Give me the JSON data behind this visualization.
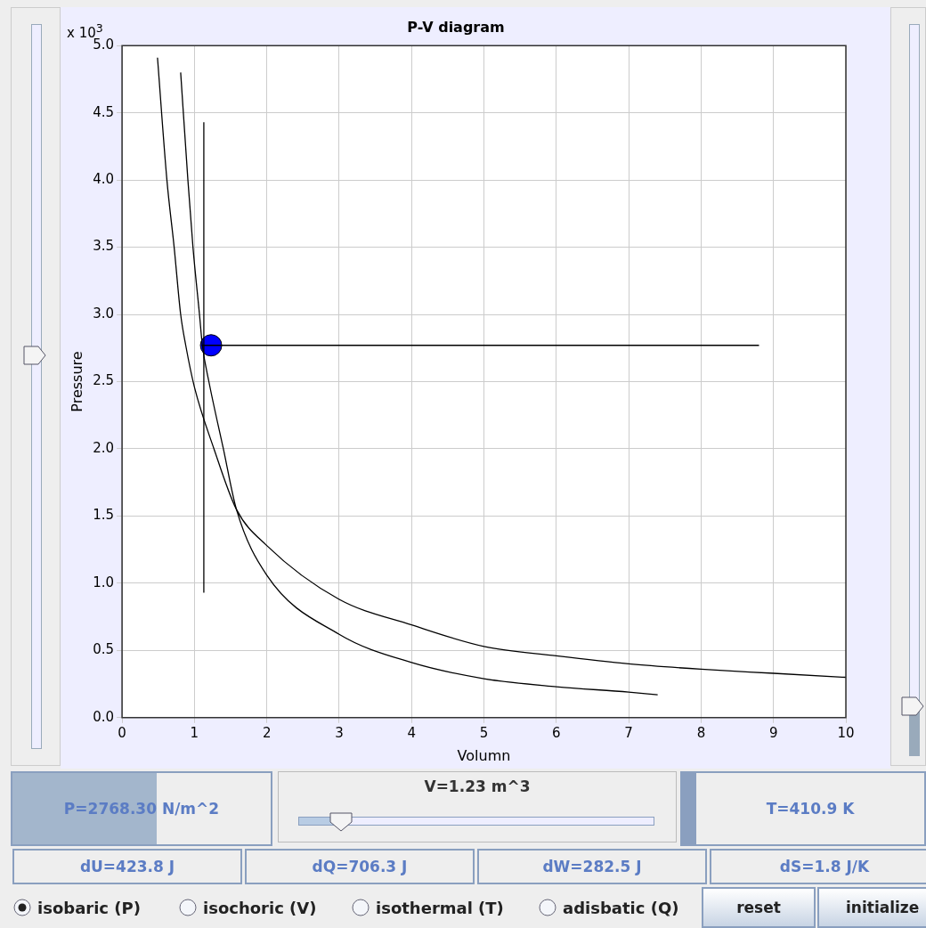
{
  "chart_data": {
    "type": "line",
    "title": "P-V diagram",
    "xlabel": "Volumn",
    "ylabel": "Pressure",
    "xlim": [
      0,
      10
    ],
    "xticks": [
      0,
      1,
      2,
      3,
      4,
      5,
      6,
      7,
      8,
      9,
      10
    ],
    "ylim": [
      0,
      5
    ],
    "yticks": [
      {
        "value": 0,
        "label": "0.0"
      },
      {
        "value": 0.5,
        "label": "0.5"
      },
      {
        "value": 1,
        "label": "1.0"
      },
      {
        "value": 1.5,
        "label": "1.5"
      },
      {
        "value": 2,
        "label": "2.0"
      },
      {
        "value": 2.5,
        "label": "2.5"
      },
      {
        "value": 3,
        "label": "3.0"
      },
      {
        "value": 3.5,
        "label": "3.5"
      },
      {
        "value": 4,
        "label": "4.0"
      },
      {
        "value": 4.5,
        "label": "4.5"
      },
      {
        "value": 5,
        "label": "5.0"
      }
    ],
    "grid": true,
    "legend": false,
    "marker": "none",
    "line_style": "solid",
    "series": [
      {
        "color": "#000000",
        "x": [
          0.49,
          0.62,
          0.72,
          0.81,
          0.88,
          1,
          1.27,
          1.58,
          2,
          3,
          4,
          5,
          6,
          7,
          8,
          9,
          10
        ],
        "values": [
          4.91,
          4.0,
          3.5,
          3.0,
          2.77,
          2.46,
          2.0,
          1.55,
          1.28,
          0.88,
          0.69,
          0.53,
          0.46,
          0.4,
          0.36,
          0.33,
          0.3
        ]
      },
      {
        "color": "#000000",
        "x": [
          0.81,
          0.91,
          0.98,
          1.07,
          1.11,
          1.2,
          1.4,
          1.58,
          2,
          3,
          4,
          5,
          6,
          7,
          7.4
        ],
        "values": [
          4.8,
          4.0,
          3.5,
          3.0,
          2.77,
          2.5,
          2.0,
          1.55,
          1.06,
          0.62,
          0.41,
          0.29,
          0.23,
          0.19,
          0.17
        ]
      },
      {
        "color": "#000000",
        "x": [
          1.1,
          8.8
        ],
        "values": [
          2.77,
          2.77
        ]
      },
      {
        "color": "#000000",
        "x": [
          1.13,
          1.13
        ],
        "values": [
          0.93,
          4.43
        ]
      },
      {
        "type": "scatter",
        "color": "#0000ff",
        "marker": "circle",
        "x": [
          1.23
        ],
        "values": [
          2.77
        ]
      }
    ],
    "annotations": [
      "x 10$^{3}$",
      "P=2768.30 N/m^2",
      "V=1.23 m^3",
      "T=410.9 K",
      "dU=423.8 J",
      "dQ=706.3 J",
      "dW=282.5 J",
      "dS=1.8 J/K",
      "isobaric (P)",
      "isochoric (V)",
      "isothermal (T)",
      "adisbatic (Q)",
      "reset",
      "initialize"
    ]
  }
}
